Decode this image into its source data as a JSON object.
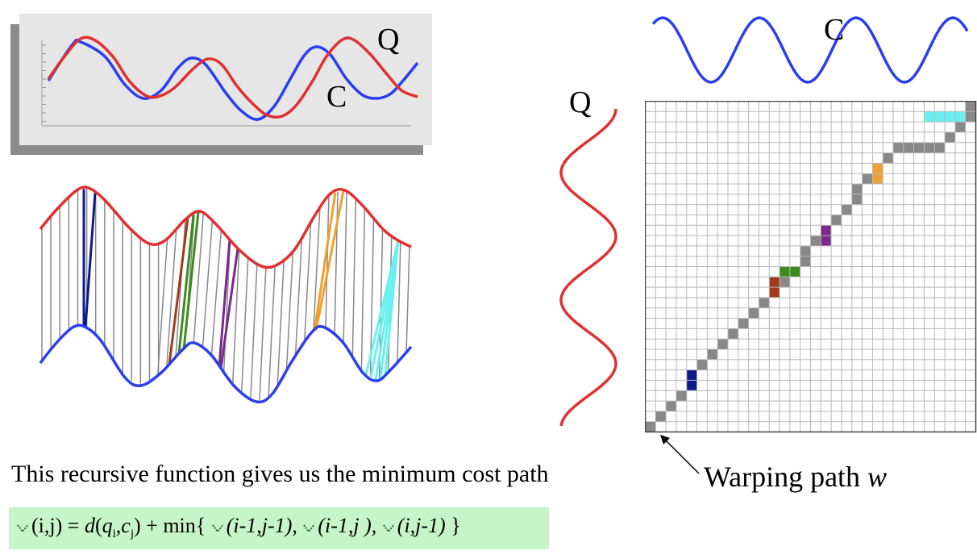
{
  "labels": {
    "top_q": "Q",
    "top_c": "C",
    "matrix_c": "C",
    "matrix_q": "Q"
  },
  "caption": "This recursive function gives us the minimum cost path",
  "warping_label": {
    "text": "Warping path ",
    "var": "w"
  },
  "formula": {
    "lhs_args": "(i,j)",
    "eq": " = ",
    "d": "d",
    "d_args_open": "(",
    "q": "q",
    "q_sub": "i",
    "comma": ",",
    "c": "c",
    "c_sub": "j",
    "d_args_close": ")",
    "plus_min": " + min{ ",
    "term1": "(i-1,j-1), ",
    "term2": "(i-1,j ), ",
    "term3": "(i,j-1) ",
    "close": "}"
  },
  "colors": {
    "q_series": "#e03030",
    "c_series": "#2a3ff0",
    "path_cell": "#888888",
    "highlight_navy": "#0c1a8c",
    "highlight_brown": "#a03a1a",
    "highlight_green": "#3c8c1c",
    "highlight_purple": "#7a2a8c",
    "highlight_orange": "#f0a030",
    "highlight_cyan": "#6af0f0",
    "formula_bg": "#c6f5c9",
    "chart_bg": "#e6e6e6",
    "chart_shadow": "#8c8c8c"
  },
  "grid": {
    "size": 32
  }
}
